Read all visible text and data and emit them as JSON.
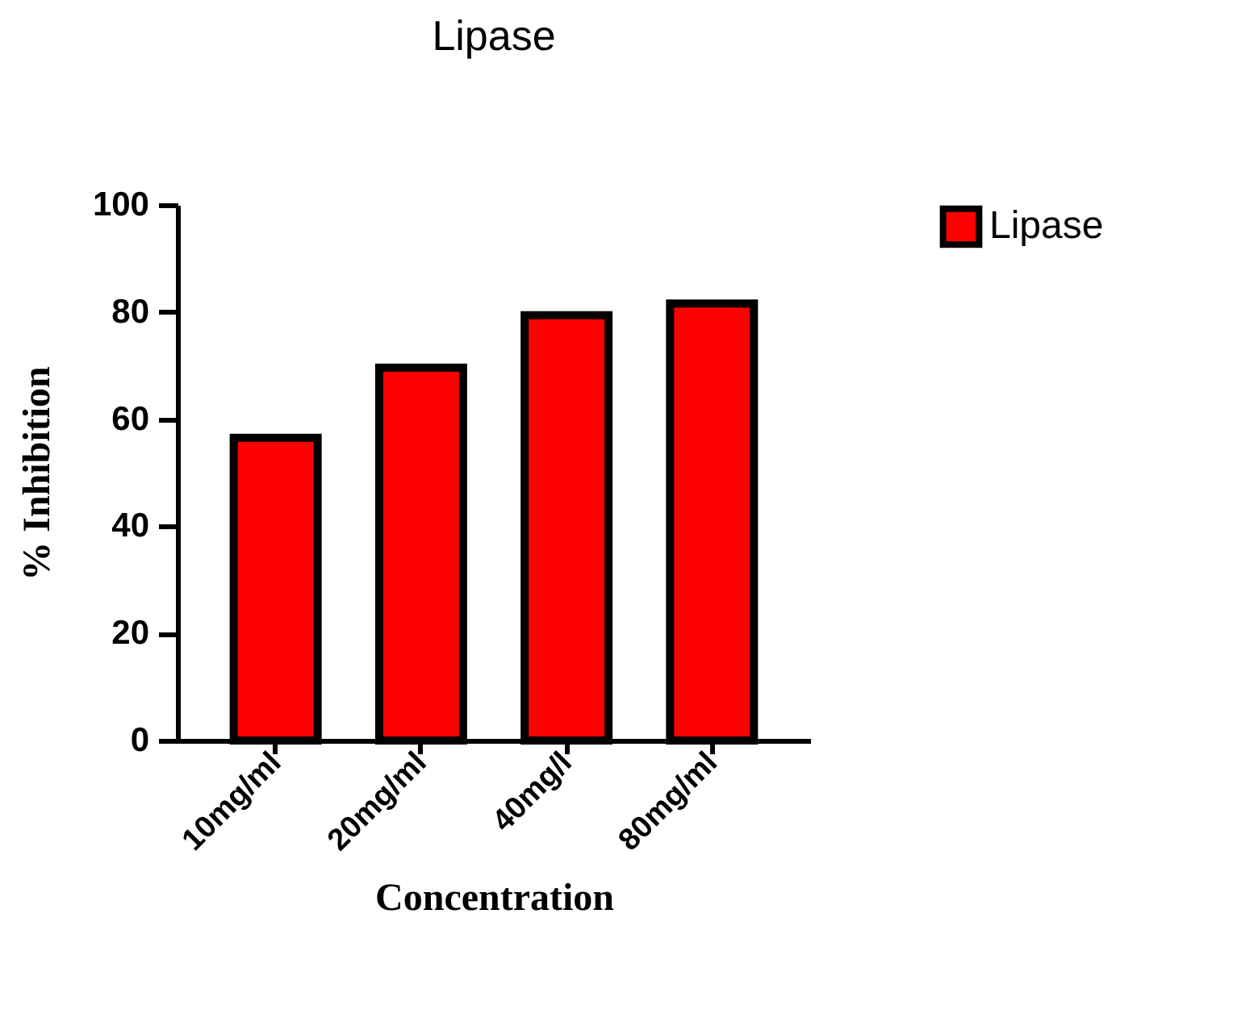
{
  "chart_data": {
    "type": "bar",
    "title": "Lipase",
    "xlabel": "Concentration",
    "ylabel": "% Inhibition",
    "categories": [
      "10mg/ml",
      "20mg/ml",
      "40mg/l",
      "80mg/ml"
    ],
    "series": [
      {
        "name": "Lipase",
        "color": "#ff0000",
        "values": [
          56.5,
          69.6,
          79.4,
          81.6
        ]
      }
    ],
    "ylim": [
      0,
      100
    ],
    "yticks": [
      0,
      20,
      40,
      60,
      80,
      100
    ],
    "grid": false,
    "legend": "top right"
  }
}
